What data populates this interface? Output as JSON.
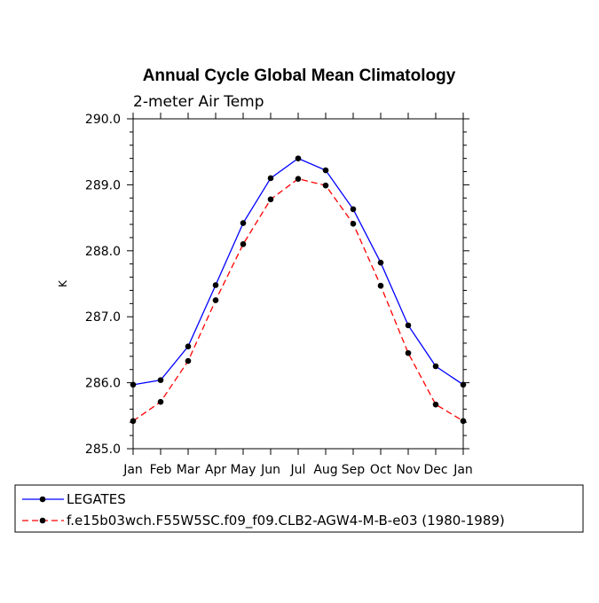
{
  "chart_data": {
    "type": "line",
    "title": "Annual Cycle Global Mean Climatology",
    "subtitle": "2-meter Air Temp",
    "xlabel": "",
    "ylabel": "K",
    "categories": [
      "Jan",
      "Feb",
      "Mar",
      "Apr",
      "May",
      "Jun",
      "Jul",
      "Aug",
      "Sep",
      "Oct",
      "Nov",
      "Dec",
      "Jan"
    ],
    "ylim": [
      285.0,
      290.0
    ],
    "yticks": [
      "285.0",
      "286.0",
      "287.0",
      "288.0",
      "289.0",
      "290.0"
    ],
    "series": [
      {
        "name": "LEGATES",
        "color": "#0000ff",
        "dash": "solid",
        "values": [
          285.97,
          286.04,
          286.55,
          287.48,
          288.42,
          289.1,
          289.4,
          289.22,
          288.63,
          287.82,
          286.87,
          286.25,
          285.97
        ]
      },
      {
        "name": "f.e15b03wch.F55W5SC.f09_f09.CLB2-AGW4-M-B-e03 (1980-1989)",
        "color": "#ff0000",
        "dash": "dashed",
        "values": [
          285.42,
          285.71,
          286.33,
          287.25,
          288.1,
          288.78,
          289.09,
          288.99,
          288.41,
          287.47,
          286.45,
          285.67,
          285.42
        ]
      }
    ]
  }
}
